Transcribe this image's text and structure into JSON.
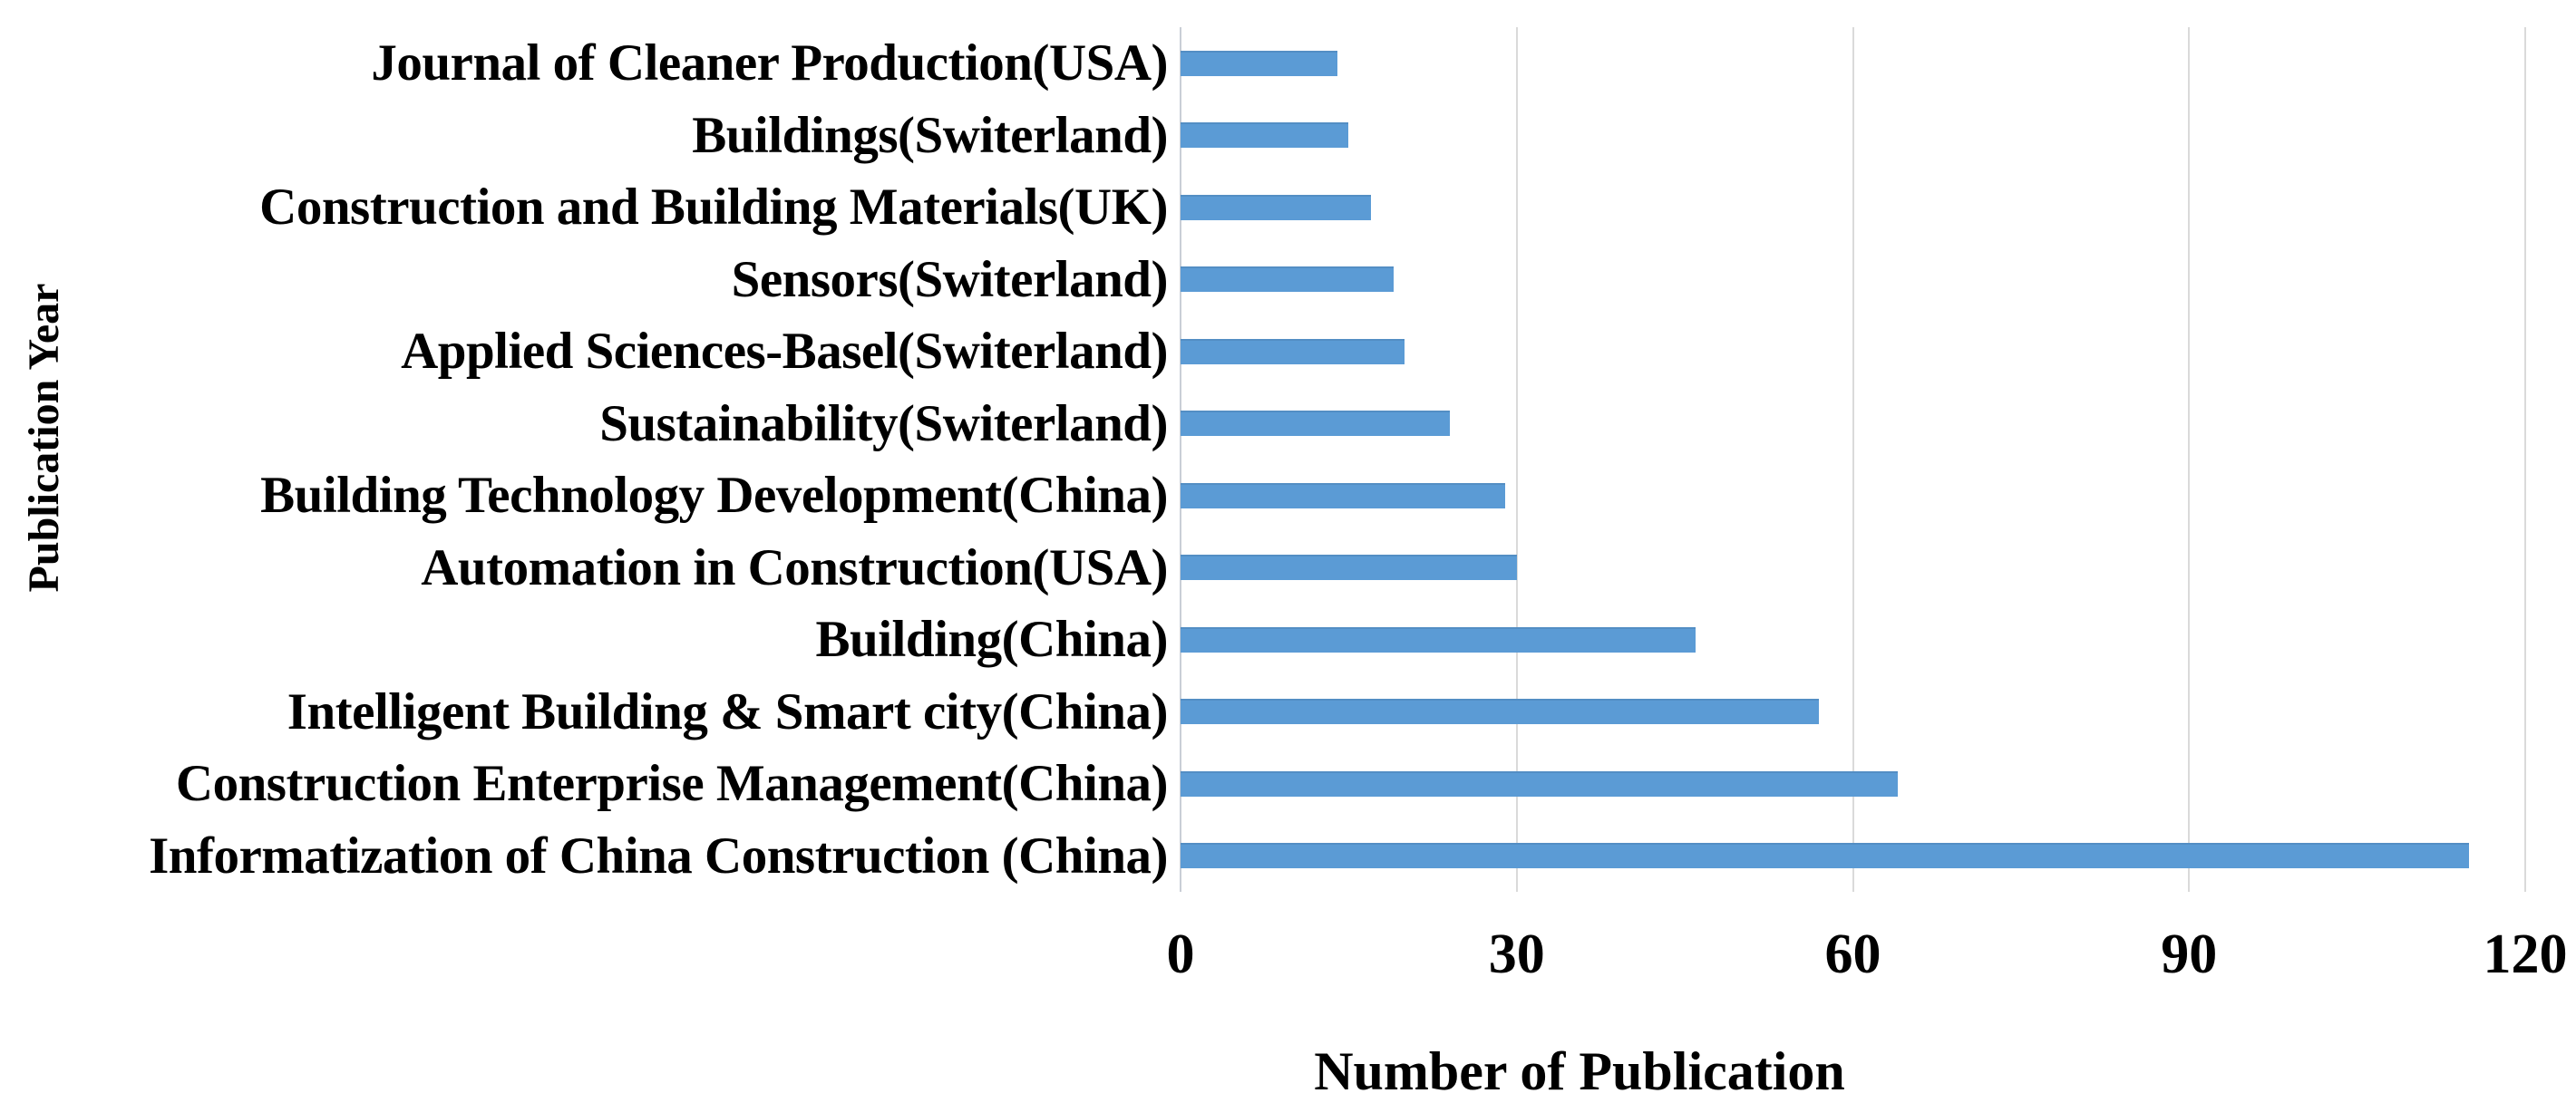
{
  "chart_data": {
    "type": "bar",
    "orientation": "horizontal",
    "title": "",
    "xlabel": "Number of Publication",
    "ylabel": "Publication Year",
    "xlim": [
      0,
      120
    ],
    "xticks": [
      0,
      30,
      60,
      90,
      120
    ],
    "grid": "vertical-gridlines-on",
    "legend": "none",
    "bar_color": "#5B9BD5",
    "gridline_color": "#DADADA",
    "axisline_color": "#C9CED6",
    "text_color": "#000000",
    "categories": [
      "Journal of Cleaner Production(USA)",
      "Buildings(Switerland)",
      "Construction and Building Materials(UK)",
      "Sensors(Switerland)",
      "Applied Sciences-Basel(Switerland)",
      "Sustainability(Switerland)",
      "Building Technology Development(China)",
      "Automation in Construction(USA)",
      "Building(China)",
      "Intelligent Building & Smart city(China)",
      "Construction Enterprise Management(China)",
      "Informatization of China Construction (China)"
    ],
    "values": [
      14,
      15,
      17,
      19,
      20,
      24,
      29,
      30,
      46,
      57,
      64,
      115
    ]
  }
}
